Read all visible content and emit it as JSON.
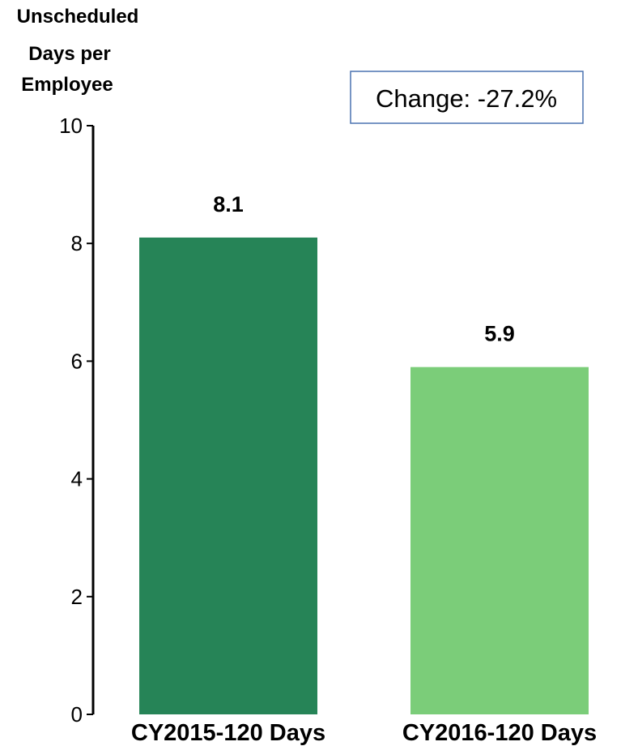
{
  "chart_data": {
    "type": "bar",
    "ylabel": [
      "Unscheduled",
      "Days per",
      "Employee"
    ],
    "xlabel": "",
    "categories": [
      "CY2015-120 Days",
      "CY2016-120 Days"
    ],
    "values": [
      8.1,
      5.9
    ],
    "data_labels": [
      "8.1",
      "5.9"
    ],
    "colors": [
      "#268457",
      "#7bcd79"
    ],
    "ylim": [
      0,
      10
    ],
    "yticks": [
      0,
      2,
      4,
      6,
      8,
      10
    ],
    "ytick_labels": [
      "0",
      "2",
      "4",
      "6",
      "8",
      "10"
    ],
    "grid": false,
    "legend": null,
    "annotation": "Change:  -27.2%"
  }
}
